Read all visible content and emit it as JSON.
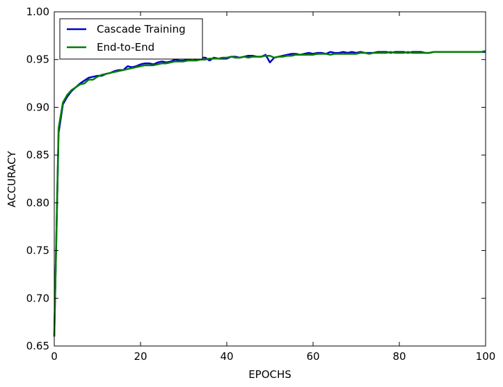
{
  "chart_data": {
    "type": "line",
    "title": "",
    "xlabel": "EPOCHS",
    "ylabel": "ACCURACY",
    "xlim": [
      0,
      100
    ],
    "ylim": [
      0.65,
      1.0
    ],
    "xticks": [
      0,
      20,
      40,
      60,
      80,
      100
    ],
    "xtick_labels": [
      "0",
      "20",
      "40",
      "60",
      "80",
      "100"
    ],
    "yticks": [
      0.65,
      0.7,
      0.75,
      0.8,
      0.85,
      0.9,
      0.95,
      1.0
    ],
    "ytick_labels": [
      "0.65",
      "0.70",
      "0.75",
      "0.80",
      "0.85",
      "0.90",
      "0.95",
      "1.00"
    ],
    "grid": false,
    "legend_position": "top-left",
    "series": [
      {
        "name": "Cascade Training",
        "color": "#0000cc",
        "x": [
          0,
          1,
          2,
          3,
          4,
          5,
          6,
          7,
          8,
          9,
          10,
          11,
          12,
          13,
          14,
          15,
          16,
          17,
          18,
          19,
          20,
          21,
          22,
          23,
          24,
          25,
          26,
          27,
          28,
          29,
          30,
          31,
          32,
          33,
          34,
          35,
          36,
          37,
          38,
          39,
          40,
          41,
          42,
          43,
          44,
          45,
          46,
          47,
          48,
          49,
          50,
          51,
          52,
          53,
          54,
          55,
          56,
          57,
          58,
          59,
          60,
          61,
          62,
          63,
          64,
          65,
          66,
          67,
          68,
          69,
          70,
          71,
          72,
          73,
          74,
          75,
          76,
          77,
          78,
          79,
          80,
          81,
          82,
          83,
          84,
          85,
          86,
          87,
          88,
          89,
          90,
          91,
          92,
          93,
          94,
          95,
          96,
          97,
          98,
          99,
          100
        ],
        "y": [
          0.66,
          0.873,
          0.903,
          0.911,
          0.917,
          0.921,
          0.925,
          0.928,
          0.931,
          0.932,
          0.933,
          0.933,
          0.935,
          0.936,
          0.938,
          0.939,
          0.939,
          0.943,
          0.942,
          0.943,
          0.945,
          0.946,
          0.946,
          0.945,
          0.947,
          0.948,
          0.947,
          0.948,
          0.95,
          0.949,
          0.949,
          0.95,
          0.951,
          0.95,
          0.952,
          0.952,
          0.949,
          0.952,
          0.951,
          0.951,
          0.951,
          0.953,
          0.953,
          0.952,
          0.953,
          0.954,
          0.954,
          0.953,
          0.953,
          0.955,
          0.947,
          0.952,
          0.953,
          0.954,
          0.955,
          0.956,
          0.956,
          0.955,
          0.956,
          0.957,
          0.956,
          0.957,
          0.957,
          0.956,
          0.958,
          0.957,
          0.957,
          0.958,
          0.957,
          0.958,
          0.957,
          0.958,
          0.957,
          0.957,
          0.957,
          0.958,
          0.958,
          0.958,
          0.957,
          0.958,
          0.958,
          0.958,
          0.957,
          0.958,
          0.958,
          0.958,
          0.957,
          0.957,
          0.958,
          0.958,
          0.958,
          0.958,
          0.958,
          0.958,
          0.958,
          0.958,
          0.958,
          0.958,
          0.958,
          0.958,
          0.958
        ]
      },
      {
        "name": "End-to-End",
        "color": "#007f00",
        "x": [
          0,
          1,
          2,
          3,
          4,
          5,
          6,
          7,
          8,
          9,
          10,
          11,
          12,
          13,
          14,
          15,
          16,
          17,
          18,
          19,
          20,
          21,
          22,
          23,
          24,
          25,
          26,
          27,
          28,
          29,
          30,
          31,
          32,
          33,
          34,
          35,
          36,
          37,
          38,
          39,
          40,
          41,
          42,
          43,
          44,
          45,
          46,
          47,
          48,
          49,
          50,
          51,
          52,
          53,
          54,
          55,
          56,
          57,
          58,
          59,
          60,
          61,
          62,
          63,
          64,
          65,
          66,
          67,
          68,
          69,
          70,
          71,
          72,
          73,
          74,
          75,
          76,
          77,
          78,
          79,
          80,
          81,
          82,
          83,
          84,
          85,
          86,
          87,
          88,
          89,
          90,
          91,
          92,
          93,
          94,
          95,
          96,
          97,
          98,
          99,
          100
        ],
        "y": [
          0.66,
          0.878,
          0.905,
          0.913,
          0.918,
          0.921,
          0.924,
          0.925,
          0.929,
          0.929,
          0.932,
          0.934,
          0.935,
          0.936,
          0.937,
          0.938,
          0.939,
          0.94,
          0.941,
          0.942,
          0.943,
          0.944,
          0.944,
          0.944,
          0.945,
          0.946,
          0.946,
          0.947,
          0.948,
          0.948,
          0.948,
          0.949,
          0.949,
          0.949,
          0.95,
          0.95,
          0.951,
          0.951,
          0.951,
          0.952,
          0.952,
          0.953,
          0.952,
          0.952,
          0.953,
          0.952,
          0.953,
          0.953,
          0.953,
          0.954,
          0.954,
          0.952,
          0.953,
          0.953,
          0.954,
          0.954,
          0.955,
          0.955,
          0.955,
          0.955,
          0.955,
          0.956,
          0.956,
          0.956,
          0.955,
          0.956,
          0.956,
          0.956,
          0.956,
          0.956,
          0.956,
          0.957,
          0.957,
          0.956,
          0.957,
          0.957,
          0.957,
          0.957,
          0.958,
          0.957,
          0.957,
          0.957,
          0.958,
          0.957,
          0.957,
          0.957,
          0.957,
          0.957,
          0.958,
          0.958,
          0.958,
          0.958,
          0.958,
          0.958,
          0.958,
          0.958,
          0.958,
          0.958,
          0.958,
          0.958,
          0.959
        ]
      }
    ]
  }
}
